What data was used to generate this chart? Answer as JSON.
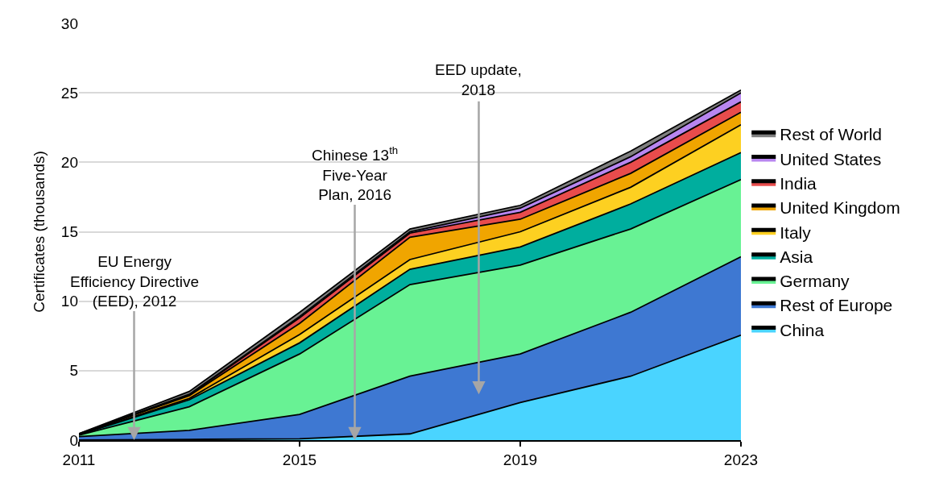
{
  "chart_data": {
    "type": "area",
    "stacked": true,
    "ylabel": "Certificates (thousands)",
    "x": [
      2011,
      2013,
      2015,
      2017,
      2019,
      2021,
      2023
    ],
    "xlim": [
      2011,
      2023
    ],
    "xticks": [
      2011,
      2015,
      2019,
      2023
    ],
    "ylim": [
      0,
      30
    ],
    "yticks": [
      0,
      5,
      10,
      15,
      20,
      25,
      30
    ],
    "grid": "y",
    "legend": "right",
    "line_style": "solid",
    "series": [
      {
        "name": "China",
        "color": "#4ad4ff",
        "values": [
          0,
          0.05,
          0.1,
          0.45,
          2.7,
          4.6,
          7.55
        ]
      },
      {
        "name": "Rest of Europe",
        "color": "#3e78d2",
        "values": [
          0.25,
          0.65,
          1.75,
          4.15,
          3.5,
          4.6,
          5.65
        ]
      },
      {
        "name": "Germany",
        "color": "#68f294",
        "values": [
          0.1,
          1.7,
          4.35,
          6.6,
          6.4,
          6.0,
          5.55
        ]
      },
      {
        "name": "Asia",
        "color": "#00ae9e",
        "values": [
          0.03,
          0.5,
          0.8,
          1.1,
          1.3,
          1.8,
          1.95
        ]
      },
      {
        "name": "Italy",
        "color": "#fdd021",
        "values": [
          0.02,
          0.1,
          0.6,
          0.7,
          1.1,
          1.2,
          2.0
        ]
      },
      {
        "name": "United Kingdom",
        "color": "#f0a500",
        "values": [
          0.03,
          0.2,
          0.8,
          1.6,
          0.9,
          1.0,
          0.9
        ]
      },
      {
        "name": "India",
        "color": "#e84c4c",
        "values": [
          0.01,
          0.05,
          0.4,
          0.3,
          0.5,
          0.8,
          0.75
        ]
      },
      {
        "name": "United States",
        "color": "#b886f0",
        "values": [
          0.01,
          0.05,
          0.1,
          0.1,
          0.3,
          0.4,
          0.65
        ]
      },
      {
        "name": "Rest of World",
        "color": "#7f7f7f",
        "values": [
          0.02,
          0.2,
          0.3,
          0.2,
          0.2,
          0.4,
          0.2
        ]
      }
    ],
    "annotations": [
      {
        "text": "EU Energy\nEfficiency Directive\n(EED), 2012",
        "x": 2012,
        "y": 0
      },
      {
        "text": "Chinese 13$^{th}$\nFive-Year\nPlan, 2016",
        "x": 2016,
        "y": 0
      },
      "EED update,\n2018"
    ]
  }
}
